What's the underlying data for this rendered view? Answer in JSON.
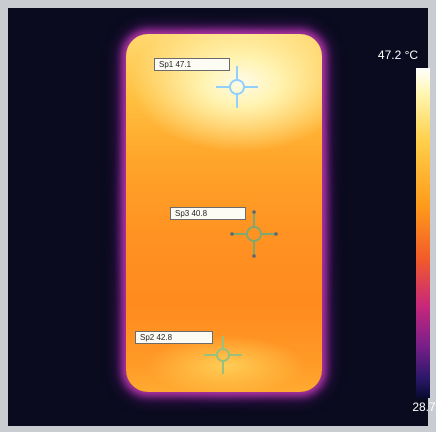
{
  "scale": {
    "max_label": "47.2 °C",
    "min_label": "28.7",
    "max": 47.2,
    "min": 28.7,
    "unit": "°C"
  },
  "spots": [
    {
      "id": "Sp1",
      "label": "Sp1 47.1",
      "value": 47.1
    },
    {
      "id": "Sp3",
      "label": "Sp3 40.8",
      "value": 40.8
    },
    {
      "id": "Sp2",
      "label": "Sp2 42.8",
      "value": 42.8
    }
  ],
  "colors": {
    "background": "#0a0b1e",
    "frame": "#c9cdd1",
    "hot": "#fffbe8",
    "warm": "#ff9322",
    "edge": "#c8287a",
    "crosshair_sp1": "#8fd0ff",
    "crosshair_sp3": "#7fa870",
    "crosshair_sp2": "#9ac080"
  },
  "icons": {
    "spot_marker": "crosshair-icon"
  }
}
